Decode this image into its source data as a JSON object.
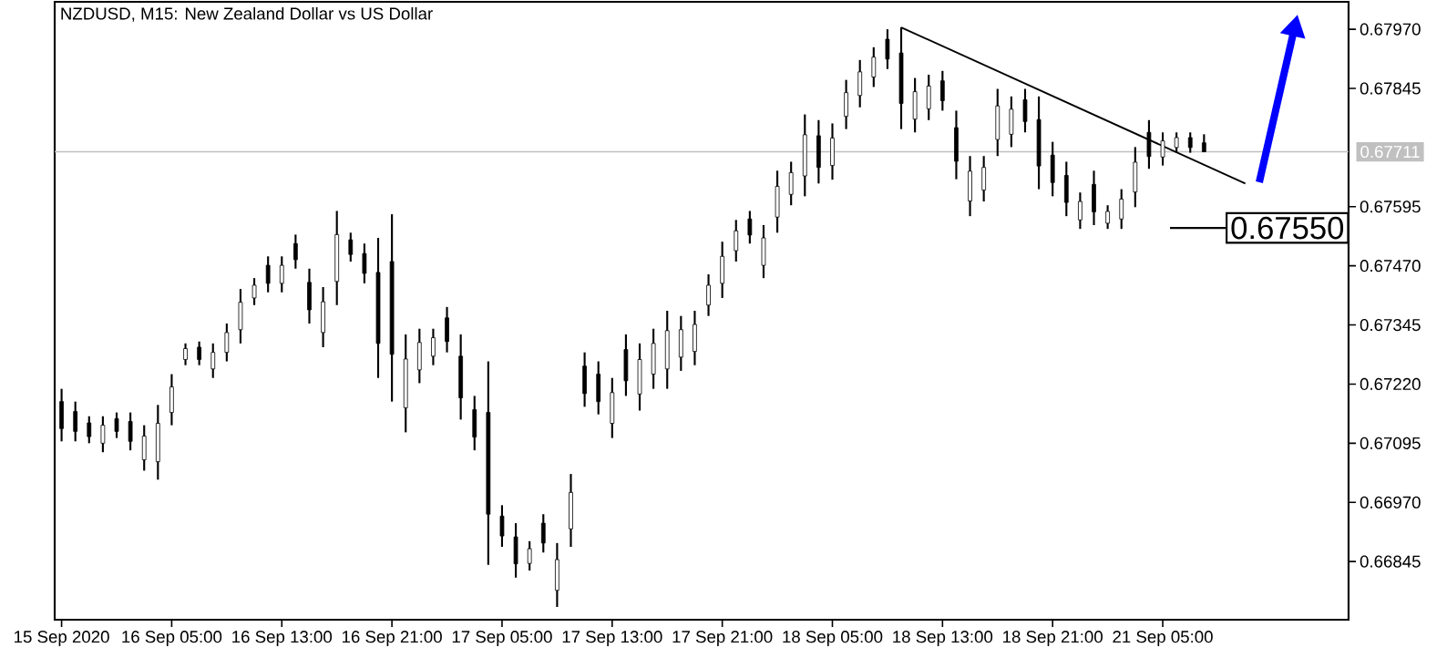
{
  "chart_data": {
    "type": "candlestick",
    "title": "NZDUSD, M15:  New Zealand Dollar vs US Dollar",
    "categories": [
      "15 Sep 2020",
      null,
      null,
      null,
      null,
      null,
      null,
      null,
      "16 Sep 05:00",
      null,
      null,
      null,
      null,
      null,
      null,
      null,
      "16 Sep 13:00",
      null,
      null,
      null,
      null,
      null,
      null,
      null,
      "16 Sep 21:00",
      null,
      null,
      null,
      null,
      null,
      null,
      null,
      "17 Sep 05:00",
      null,
      null,
      null,
      null,
      null,
      null,
      null,
      "17 Sep 13:00",
      null,
      null,
      null,
      null,
      null,
      null,
      null,
      "17 Sep 21:00",
      null,
      null,
      null,
      null,
      null,
      null,
      null,
      "18 Sep 05:00",
      null,
      null,
      null,
      null,
      null,
      null,
      null,
      "18 Sep 13:00",
      null,
      null,
      null,
      null,
      null,
      null,
      null,
      "18 Sep 21:00",
      null,
      null,
      null,
      null,
      null,
      null,
      null,
      "21 Sep 05:00",
      null,
      null,
      null,
      null,
      null,
      null,
      null,
      null,
      null,
      null,
      null,
      null,
      null
    ],
    "color": "#000000",
    "ohlc": [
      [
        0.67183,
        0.6721,
        0.67099,
        0.67126
      ],
      [
        0.67162,
        0.67183,
        0.67099,
        0.6712
      ],
      [
        0.67138,
        0.67152,
        0.67095,
        0.67109
      ],
      [
        0.67095,
        0.67152,
        0.67076,
        0.67133
      ],
      [
        0.67147,
        0.6716,
        0.67106,
        0.6712
      ],
      [
        0.67141,
        0.6716,
        0.6708,
        0.67099
      ],
      [
        0.6706,
        0.67133,
        0.67037,
        0.6711
      ],
      [
        0.67056,
        0.67176,
        0.67018,
        0.67137
      ],
      [
        0.6716,
        0.67241,
        0.67133,
        0.67214
      ],
      [
        0.67272,
        0.67306,
        0.6726,
        0.67295
      ],
      [
        0.67298,
        0.6731,
        0.6726,
        0.67272
      ],
      [
        0.67252,
        0.67306,
        0.67233,
        0.67287
      ],
      [
        0.67287,
        0.67348,
        0.67268,
        0.67329
      ],
      [
        0.67335,
        0.67421,
        0.67306,
        0.67393
      ],
      [
        0.67402,
        0.67444,
        0.67387,
        0.67429
      ],
      [
        0.67471,
        0.6749,
        0.67414,
        0.67433
      ],
      [
        0.67433,
        0.6749,
        0.67414,
        0.67471
      ],
      [
        0.67517,
        0.67536,
        0.67464,
        0.67483
      ],
      [
        0.67435,
        0.67464,
        0.67348,
        0.67377
      ],
      [
        0.67329,
        0.67425,
        0.67298,
        0.67394
      ],
      [
        0.67437,
        0.67586,
        0.67387,
        0.67536
      ],
      [
        0.67525,
        0.6754,
        0.67479,
        0.67494
      ],
      [
        0.67496,
        0.67517,
        0.67433,
        0.67454
      ],
      [
        0.67456,
        0.67529,
        0.67233,
        0.67306
      ],
      [
        0.67479,
        0.67579,
        0.67183,
        0.67283
      ],
      [
        0.6717,
        0.67325,
        0.67118,
        0.67273
      ],
      [
        0.6725,
        0.67337,
        0.67222,
        0.67308
      ],
      [
        0.67279,
        0.67337,
        0.6726,
        0.67318
      ],
      [
        0.6736,
        0.67383,
        0.67287,
        0.6731
      ],
      [
        0.67279,
        0.67325,
        0.67145,
        0.67191
      ],
      [
        0.67166,
        0.67195,
        0.6708,
        0.67108
      ],
      [
        0.6716,
        0.67268,
        0.66838,
        0.66945
      ],
      [
        0.66941,
        0.66964,
        0.66876,
        0.66899
      ],
      [
        0.66897,
        0.66926,
        0.66811,
        0.6684
      ],
      [
        0.66841,
        0.66888,
        0.66826,
        0.66872
      ],
      [
        0.66926,
        0.66945,
        0.66864,
        0.66884
      ],
      [
        0.66784,
        0.66884,
        0.66749,
        0.66849
      ],
      [
        0.66914,
        0.6703,
        0.66876,
        0.66991
      ],
      [
        0.67258,
        0.67287,
        0.67172,
        0.672
      ],
      [
        0.67241,
        0.67268,
        0.67156,
        0.67183
      ],
      [
        0.67137,
        0.67233,
        0.67106,
        0.67202
      ],
      [
        0.67293,
        0.67325,
        0.67195,
        0.67227
      ],
      [
        0.67199,
        0.67306,
        0.67164,
        0.67272
      ],
      [
        0.67241,
        0.67337,
        0.6721,
        0.67306
      ],
      [
        0.67252,
        0.67375,
        0.6721,
        0.67333
      ],
      [
        0.67277,
        0.67364,
        0.67248,
        0.67335
      ],
      [
        0.67289,
        0.67375,
        0.6726,
        0.67346
      ],
      [
        0.67387,
        0.67452,
        0.67364,
        0.67429
      ],
      [
        0.67433,
        0.67521,
        0.67402,
        0.6749
      ],
      [
        0.67502,
        0.67567,
        0.67479,
        0.67544
      ],
      [
        0.67569,
        0.67586,
        0.67517,
        0.67535
      ],
      [
        0.67471,
        0.67556,
        0.67444,
        0.67529
      ],
      [
        0.67573,
        0.67671,
        0.6754,
        0.67638
      ],
      [
        0.67621,
        0.6769,
        0.67598,
        0.67667
      ],
      [
        0.6766,
        0.6779,
        0.67617,
        0.67747
      ],
      [
        0.67745,
        0.67778,
        0.67644,
        0.67678
      ],
      [
        0.67682,
        0.67771,
        0.67652,
        0.6774
      ],
      [
        0.67786,
        0.67863,
        0.67759,
        0.67836
      ],
      [
        0.6783,
        0.67905,
        0.67805,
        0.6788
      ],
      [
        0.67869,
        0.67932,
        0.67848,
        0.67911
      ],
      [
        0.67949,
        0.6797,
        0.67886,
        0.67907
      ],
      [
        0.6792,
        0.67974,
        0.67759,
        0.67813
      ],
      [
        0.6778,
        0.67867,
        0.67752,
        0.67838
      ],
      [
        0.67802,
        0.67874,
        0.67778,
        0.6785
      ],
      [
        0.67861,
        0.67882,
        0.67798,
        0.67819
      ],
      [
        0.67762,
        0.67798,
        0.67653,
        0.67691
      ],
      [
        0.67607,
        0.67702,
        0.67575,
        0.6767
      ],
      [
        0.6763,
        0.67702,
        0.67606,
        0.67678
      ],
      [
        0.67737,
        0.67844,
        0.67702,
        0.67808
      ],
      [
        0.67748,
        0.67828,
        0.67721,
        0.67801
      ],
      [
        0.67821,
        0.67844,
        0.67752,
        0.67775
      ],
      [
        0.67779,
        0.67828,
        0.67632,
        0.67681
      ],
      [
        0.67704,
        0.67732,
        0.67617,
        0.67646
      ],
      [
        0.67661,
        0.6769,
        0.67575,
        0.67604
      ],
      [
        0.67567,
        0.67625,
        0.67548,
        0.67606
      ],
      [
        0.67642,
        0.67671,
        0.67556,
        0.67584
      ],
      [
        0.6756,
        0.67598,
        0.67548,
        0.67585
      ],
      [
        0.67569,
        0.67632,
        0.67548,
        0.67611
      ],
      [
        0.67626,
        0.67721,
        0.67594,
        0.67689
      ],
      [
        0.67752,
        0.67778,
        0.67675,
        0.67701
      ],
      [
        0.677,
        0.67752,
        0.67682,
        0.67734
      ],
      [
        0.6772,
        0.67752,
        0.67709,
        0.67741
      ],
      [
        0.67741,
        0.67752,
        0.67709,
        0.6772
      ],
      [
        0.6773,
        0.67748,
        0.67711,
        0.67711
      ],
      null,
      null,
      null,
      null,
      null,
      null,
      null,
      null,
      null,
      null
    ],
    "series": [
      {
        "type": "line",
        "color": "#000000",
        "values": [
          null,
          null,
          null,
          null,
          null,
          null,
          null,
          null,
          null,
          null,
          null,
          null,
          null,
          null,
          null,
          null,
          null,
          null,
          null,
          null,
          null,
          null,
          null,
          null,
          null,
          null,
          null,
          null,
          null,
          null,
          null,
          null,
          null,
          null,
          null,
          null,
          null,
          null,
          null,
          null,
          null,
          null,
          null,
          null,
          null,
          null,
          null,
          null,
          null,
          null,
          null,
          null,
          null,
          null,
          null,
          null,
          null,
          null,
          null,
          null,
          null,
          0.67974,
          null,
          null,
          null,
          null,
          null,
          null,
          null,
          null,
          null,
          null,
          null,
          null,
          null,
          null,
          null,
          null,
          null,
          null,
          null,
          null,
          null,
          null,
          null,
          null,
          0.67644,
          null,
          null,
          null,
          null,
          null,
          null,
          null
        ]
      }
    ],
    "ylim": [
      0.66722,
      0.68028
    ],
    "yticks": [
      {
        "value": 0.66845,
        "label": "0.66845"
      },
      {
        "value": 0.6697,
        "label": "0.66970"
      },
      {
        "value": 0.67095,
        "label": "0.67095"
      },
      {
        "value": 0.6722,
        "label": "0.67220"
      },
      {
        "value": 0.67345,
        "label": "0.67345"
      },
      {
        "value": 0.6747,
        "label": "0.67470"
      },
      {
        "value": 0.67595,
        "label": "0.67595"
      },
      {
        "value": 0.67845,
        "label": "0.67845"
      },
      {
        "value": 0.6797,
        "label": "0.67970"
      }
    ],
    "ref_lines": [
      {
        "axis": "y",
        "value": 0.67711,
        "label": "0.67711",
        "color": "#c0c0c0"
      }
    ],
    "annotations": [
      "0.67550"
    ]
  }
}
